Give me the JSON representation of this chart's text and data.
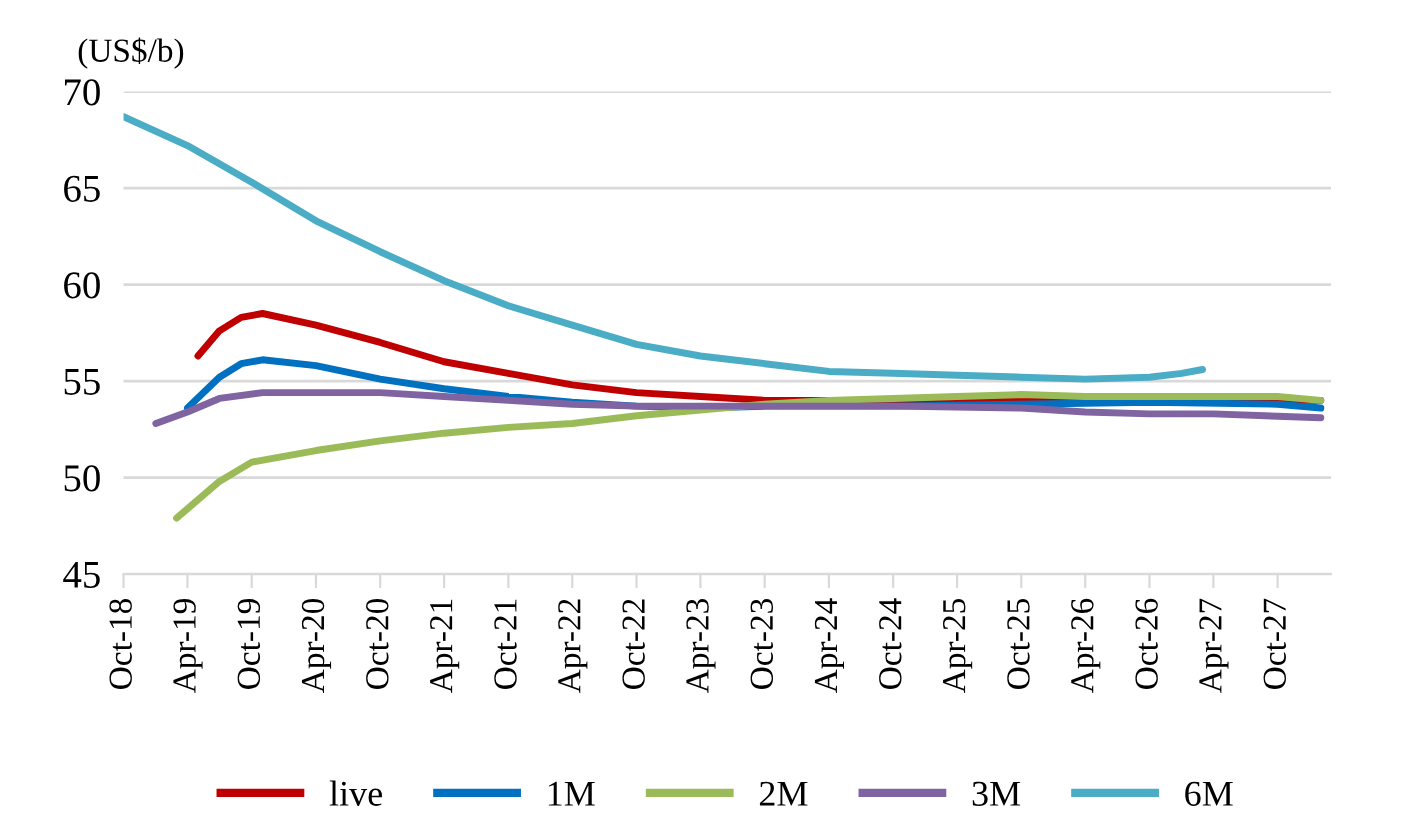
{
  "chart_data": {
    "type": "line",
    "ylabel": "(US$/b)",
    "ylim": [
      45,
      70
    ],
    "yticks": [
      45,
      50,
      55,
      60,
      65,
      70
    ],
    "xlim": [
      "2018-10",
      "2028-03"
    ],
    "xticks": [
      {
        "value": "2018-10",
        "label": "Oct-18"
      },
      {
        "value": "2019-04",
        "label": "Apr-19"
      },
      {
        "value": "2019-10",
        "label": "Oct-19"
      },
      {
        "value": "2020-04",
        "label": "Apr-20"
      },
      {
        "value": "2020-10",
        "label": "Oct-20"
      },
      {
        "value": "2021-04",
        "label": "Apr-21"
      },
      {
        "value": "2021-10",
        "label": "Oct-21"
      },
      {
        "value": "2022-04",
        "label": "Apr-22"
      },
      {
        "value": "2022-10",
        "label": "Oct-22"
      },
      {
        "value": "2023-04",
        "label": "Apr-23"
      },
      {
        "value": "2023-10",
        "label": "Oct-23"
      },
      {
        "value": "2024-04",
        "label": "Apr-24"
      },
      {
        "value": "2024-10",
        "label": "Oct-24"
      },
      {
        "value": "2025-04",
        "label": "Apr-25"
      },
      {
        "value": "2025-10",
        "label": "Oct-25"
      },
      {
        "value": "2026-04",
        "label": "Apr-26"
      },
      {
        "value": "2026-10",
        "label": "Oct-26"
      },
      {
        "value": "2027-04",
        "label": "Apr-27"
      },
      {
        "value": "2027-10",
        "label": "Oct-27"
      }
    ],
    "grid": "y",
    "legend": "bottom",
    "marker": "none",
    "line_style": "solid",
    "series": [
      {
        "name": "live",
        "color": "#c00000",
        "x": [
          "2019-05",
          "2019-07",
          "2019-09",
          "2019-11",
          "2020-04",
          "2020-10",
          "2021-04",
          "2021-10",
          "2022-04",
          "2022-10",
          "2023-04",
          "2023-10",
          "2024-10",
          "2025-10",
          "2026-10",
          "2027-10",
          "2028-02"
        ],
        "values": [
          56.3,
          57.6,
          58.3,
          58.5,
          57.9,
          57.0,
          56.0,
          55.4,
          54.8,
          54.4,
          54.2,
          54.0,
          54.0,
          54.1,
          54.0,
          54.0,
          54.0
        ]
      },
      {
        "name": "1M",
        "color": "#0070c0",
        "x": [
          "2019-04",
          "2019-07",
          "2019-09",
          "2019-11",
          "2020-04",
          "2020-10",
          "2021-04",
          "2021-10",
          "2022-04",
          "2022-10",
          "2023-04",
          "2023-10",
          "2024-10",
          "2025-10",
          "2026-10",
          "2027-10",
          "2028-02"
        ],
        "values": [
          53.6,
          55.2,
          55.9,
          56.1,
          55.8,
          55.1,
          54.6,
          54.2,
          53.9,
          53.7,
          53.6,
          53.7,
          53.7,
          53.8,
          53.9,
          53.8,
          53.6
        ]
      },
      {
        "name": "2M",
        "color": "#9bbb59",
        "x": [
          "2019-03",
          "2019-07",
          "2019-10",
          "2020-04",
          "2020-10",
          "2021-04",
          "2021-10",
          "2022-04",
          "2022-10",
          "2023-04",
          "2023-10",
          "2024-04",
          "2024-10",
          "2025-04",
          "2025-10",
          "2026-04",
          "2027-10",
          "2028-02"
        ],
        "values": [
          47.9,
          49.8,
          50.8,
          51.4,
          51.9,
          52.3,
          52.6,
          52.8,
          53.2,
          53.5,
          53.8,
          54.0,
          54.1,
          54.2,
          54.3,
          54.2,
          54.2,
          54.0
        ]
      },
      {
        "name": "3M",
        "color": "#8064a2",
        "x": [
          "2019-01",
          "2019-04",
          "2019-07",
          "2019-11",
          "2020-04",
          "2020-10",
          "2021-04",
          "2021-10",
          "2022-04",
          "2022-10",
          "2023-04",
          "2024-10",
          "2025-10",
          "2026-04",
          "2026-10",
          "2027-04",
          "2028-02"
        ],
        "values": [
          52.8,
          53.4,
          54.1,
          54.4,
          54.4,
          54.4,
          54.2,
          54.0,
          53.8,
          53.7,
          53.7,
          53.7,
          53.6,
          53.4,
          53.3,
          53.3,
          53.1
        ]
      },
      {
        "name": "6M",
        "color": "#4bacc6",
        "x": [
          "2018-10",
          "2019-04",
          "2019-10",
          "2020-04",
          "2020-10",
          "2021-04",
          "2021-10",
          "2022-04",
          "2022-10",
          "2023-04",
          "2023-10",
          "2024-04",
          "2024-10",
          "2025-04",
          "2025-10",
          "2026-04",
          "2026-10",
          "2027-01",
          "2027-03"
        ],
        "values": [
          68.7,
          67.2,
          65.3,
          63.3,
          61.7,
          60.2,
          58.9,
          57.9,
          56.9,
          56.3,
          55.9,
          55.5,
          55.4,
          55.3,
          55.2,
          55.1,
          55.2,
          55.4,
          55.6
        ]
      }
    ]
  }
}
